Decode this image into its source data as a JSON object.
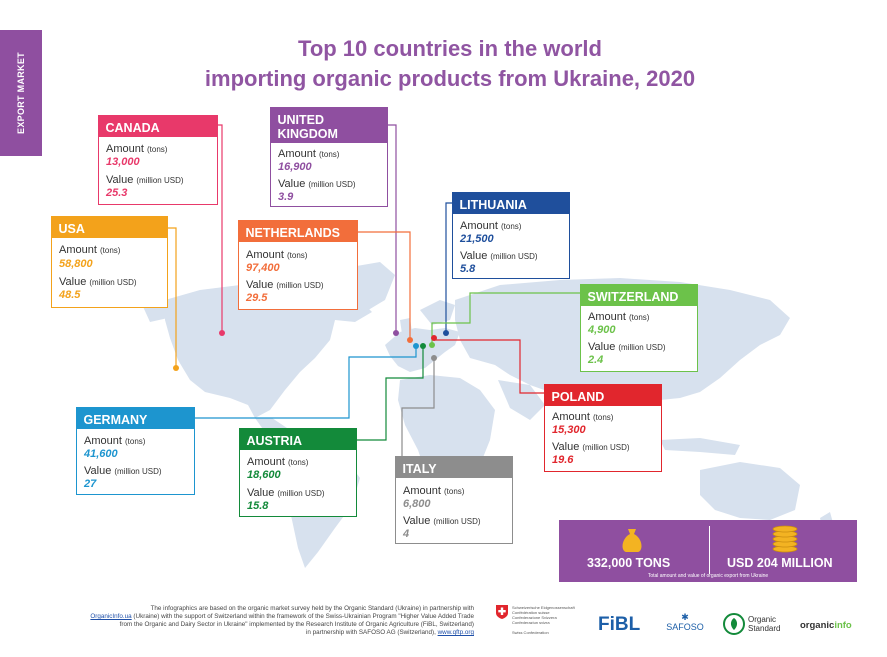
{
  "sidebar": {
    "label": "EXPORT MARKET"
  },
  "title": {
    "line1": "Top 10 countries in the world",
    "line2": "importing organic products from Ukraine, 2020"
  },
  "labels": {
    "amount": "Amount",
    "tons": "(tons)",
    "value": "Value",
    "musd": "(million USD)"
  },
  "countries": [
    {
      "key": "canada",
      "name": "CANADA",
      "amount": "13,000",
      "value": "25.3",
      "color": "#e8396a"
    },
    {
      "key": "uk",
      "name": "UNITED\nKINGDOM",
      "amount": "16,900",
      "value": "3.9",
      "color": "#8f4fa0"
    },
    {
      "key": "usa",
      "name": "USA",
      "amount": "58,800",
      "value": "48.5",
      "color": "#f3a21b"
    },
    {
      "key": "netherlands",
      "name": "NETHERLANDS",
      "amount": "97,400",
      "value": "29.5",
      "color": "#f26e3b"
    },
    {
      "key": "lithuania",
      "name": "LITHUANIA",
      "amount": "21,500",
      "value": "5.8",
      "color": "#1f4f9c"
    },
    {
      "key": "switzerland",
      "name": "SWITZERLAND",
      "amount": "4,900",
      "value": "2.4",
      "color": "#6cc24a"
    },
    {
      "key": "poland",
      "name": "POLAND",
      "amount": "15,300",
      "value": "19.6",
      "color": "#e1262d"
    },
    {
      "key": "germany",
      "name": "GERMANY",
      "amount": "41,600",
      "value": "27",
      "color": "#1d95cf"
    },
    {
      "key": "austria",
      "name": "AUSTRIA",
      "amount": "18,600",
      "value": "15.8",
      "color": "#138a3a"
    },
    {
      "key": "italy",
      "name": "ITALY",
      "amount": "6,800",
      "value": "4",
      "color": "#8d8d8d"
    }
  ],
  "summary": {
    "tons": "332,000  TONS",
    "usd": "USD 204 MILLION",
    "caption": "Total amount and value of organic export from Ukraine"
  },
  "footer": {
    "line1": "The infographics are based on the organic market survey held by the Organic Standard (Ukraine) in partnership with",
    "link1": "OrganicInfo.ua",
    "line2": " (Ukraine) with the support of Switzerland within the framework of the Swiss-Ukrainian Program \"Higher Value Added Trade",
    "line3": "from the Organic and Dairy Sector in Ukraine\" implemented by the Research Institute of Organic Agriculture (FiBL, Switzerland)",
    "line4": "in partnership with SAFOSO AG (Switzerland), ",
    "link2": "www.qftp.org"
  },
  "logos": {
    "swiss_lines": [
      "Schweizerische Eidgenossenschaft",
      "Confédération suisse",
      "Confederazione Svizzera",
      "Confederaziun svizra"
    ],
    "swiss_sub": "Swiss Confederation",
    "fibl": "FiBL",
    "safoso": "SAFOSO",
    "organic_standard_1": "Organic",
    "organic_standard_2": "Standard",
    "organicinfo_a": "organic",
    "organicinfo_b": "info"
  },
  "colors": {
    "brand": "#8f4fa0",
    "map": "#d7e1ee"
  }
}
